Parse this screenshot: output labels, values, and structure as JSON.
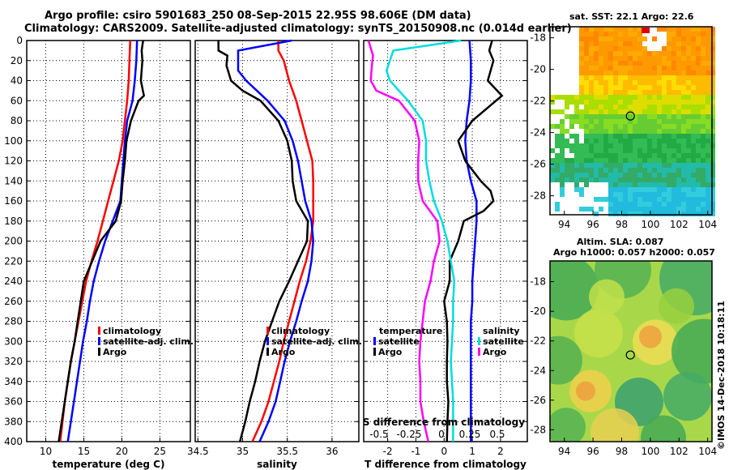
{
  "header": {
    "title_line1": "Argo profile: csiro 5901683_250 08-Sep-2015 22.95S 98.606E (DM data)",
    "title_line2": "Climatology: CARS2009. Satellite-adjusted climatology: synTS_20150908.nc (0.014d earlier)"
  },
  "maps": {
    "sst_title": "sat. SST: 22.1  Argo: 22.6",
    "sla_title1": "Altim. SLA: 0.087",
    "sla_title2": "Argo h1000: 0.057 h2000: 0.057",
    "lon_ticks": [
      "94",
      "96",
      "98",
      "100",
      "102",
      "104"
    ],
    "lat_ticks": [
      "-18",
      "-20",
      "-22",
      "-24",
      "-26",
      "-28"
    ],
    "argo_lon": 98.606,
    "argo_lat": -22.95
  },
  "footer": {
    "stamp": "©IMOS 14-Dec-2018 10:18:11"
  },
  "chart_data": [
    {
      "type": "line",
      "id": "temperature",
      "xlabel": "temperature (deg C)",
      "ylabel": "",
      "xlim": [
        7.5,
        29
      ],
      "ylim": [
        400,
        0
      ],
      "xticks": [
        10,
        15,
        20,
        25
      ],
      "yticks": [
        0,
        20,
        40,
        60,
        80,
        100,
        120,
        140,
        160,
        180,
        200,
        220,
        240,
        260,
        280,
        300,
        320,
        340,
        360,
        380,
        400
      ],
      "grid": true,
      "legend": [
        "climatology",
        "satellite-adj. clim.",
        "Argo"
      ],
      "legend_position": "lower-right",
      "series": [
        {
          "name": "climatology",
          "color": "#ff0000",
          "depth": [
            0,
            20,
            40,
            60,
            80,
            100,
            120,
            140,
            160,
            180,
            200,
            220,
            240,
            260,
            280,
            300,
            320,
            340,
            360,
            380,
            400
          ],
          "values": [
            21.1,
            21.0,
            20.9,
            20.7,
            20.4,
            20.1,
            19.6,
            18.9,
            18.2,
            17.5,
            16.8,
            16.0,
            15.3,
            14.8,
            14.3,
            13.8,
            13.3,
            12.9,
            12.5,
            12.2,
            11.9
          ]
        },
        {
          "name": "satellite-adj. clim.",
          "color": "#0000ff",
          "depth": [
            0,
            20,
            40,
            60,
            80,
            100,
            120,
            140,
            160,
            180,
            200,
            220,
            240,
            260,
            280,
            300,
            320,
            340,
            360,
            380,
            400
          ],
          "values": [
            22.0,
            21.9,
            21.7,
            21.4,
            20.7,
            20.4,
            20.2,
            20.0,
            19.8,
            18.8,
            17.8,
            17.0,
            16.3,
            15.8,
            15.4,
            14.9,
            14.5,
            14.1,
            13.7,
            13.3,
            12.9
          ]
        },
        {
          "name": "Argo",
          "color": "#000000",
          "depth": [
            0,
            10,
            20,
            40,
            55,
            60,
            80,
            100,
            120,
            140,
            160,
            180,
            200,
            220,
            240,
            260,
            280,
            300,
            320,
            340,
            360,
            380,
            400
          ],
          "values": [
            22.8,
            22.6,
            22.7,
            22.5,
            22.9,
            22.2,
            21.2,
            20.6,
            20.4,
            20.1,
            19.9,
            19.2,
            17.2,
            16.1,
            15.0,
            14.6,
            14.2,
            13.8,
            13.3,
            12.9,
            12.5,
            12.1,
            11.7
          ]
        }
      ]
    },
    {
      "type": "line",
      "id": "salinity",
      "xlabel": "salinity",
      "ylabel": "",
      "xlim": [
        34.47,
        36.3
      ],
      "ylim": [
        400,
        0
      ],
      "xticks": [
        34.5,
        35,
        35.5,
        36
      ],
      "xticklabels": [
        "34.5",
        "35",
        "35.5",
        "36"
      ],
      "grid": true,
      "legend": [
        "climatology",
        "satellite-adj. clim.",
        "Argo"
      ],
      "legend_position": "lower-right",
      "series": [
        {
          "name": "climatology",
          "color": "#ff0000",
          "depth": [
            0,
            10,
            20,
            40,
            60,
            80,
            100,
            120,
            140,
            160,
            180,
            200,
            220,
            240,
            260,
            280,
            300,
            320,
            340,
            360,
            380,
            400
          ],
          "values": [
            35.4,
            35.4,
            35.46,
            35.52,
            35.6,
            35.66,
            35.72,
            35.78,
            35.79,
            35.79,
            35.79,
            35.76,
            35.71,
            35.64,
            35.58,
            35.52,
            35.46,
            35.41,
            35.35,
            35.29,
            35.21,
            35.11
          ]
        },
        {
          "name": "satellite-adj. clim.",
          "color": "#0000ff",
          "depth": [
            0,
            10,
            30,
            40,
            60,
            80,
            100,
            120,
            140,
            160,
            180,
            200,
            220,
            240,
            260,
            280,
            300,
            320,
            340,
            360,
            380,
            400
          ],
          "values": [
            35.55,
            34.95,
            34.95,
            35.04,
            35.28,
            35.47,
            35.56,
            35.62,
            35.66,
            35.7,
            35.77,
            35.79,
            35.77,
            35.73,
            35.66,
            35.6,
            35.53,
            35.47,
            35.42,
            35.37,
            35.29,
            35.19
          ]
        },
        {
          "name": "Argo",
          "color": "#000000",
          "depth": [
            0,
            10,
            15,
            25,
            40,
            50,
            60,
            80,
            100,
            120,
            140,
            160,
            180,
            200,
            220,
            240,
            260,
            280,
            300,
            320,
            340,
            360,
            380,
            400
          ],
          "values": [
            34.73,
            34.73,
            34.83,
            34.82,
            34.87,
            35.0,
            35.2,
            35.4,
            35.5,
            35.55,
            35.56,
            35.6,
            35.73,
            35.72,
            35.62,
            35.52,
            35.41,
            35.33,
            35.25,
            35.19,
            35.14,
            35.08,
            35.03,
            34.97
          ]
        }
      ]
    },
    {
      "type": "line",
      "id": "difference",
      "xlabel": "T difference from climatology",
      "xlabel_top": "S difference from climatology",
      "xlim": [
        -2.85,
        2.95
      ],
      "ylim": [
        400,
        0
      ],
      "xticks": [
        -2,
        -1,
        0,
        1,
        2
      ],
      "xticklabels": [
        "-2",
        "-1",
        "0",
        "1",
        "2"
      ],
      "xticks_s": [
        "-0.5",
        "-0.25",
        "0",
        "0.25",
        "0.5"
      ],
      "grid": true,
      "legend_temperature_title": "temperature",
      "legend_salinity_title": "salinity",
      "legend_temperature": [
        "satellite",
        "Argo"
      ],
      "legend_salinity": [
        "satellite",
        "Argo"
      ],
      "series": [
        {
          "name": "temperature satellite",
          "color": "#0000ff",
          "axis": "T",
          "depth": [
            0,
            20,
            40,
            60,
            80,
            100,
            120,
            140,
            160,
            180,
            200,
            220,
            240,
            260,
            280,
            300,
            320,
            340,
            360,
            380,
            400
          ],
          "values": [
            0.9,
            0.95,
            0.95,
            0.9,
            0.8,
            0.75,
            0.8,
            0.95,
            1.15,
            1.15,
            1.1,
            1.05,
            1.0,
            1.0,
            0.95,
            0.95,
            0.95,
            0.95,
            0.95,
            0.95,
            0.95
          ]
        },
        {
          "name": "temperature Argo",
          "color": "#000000",
          "axis": "T",
          "depth": [
            0,
            10,
            20,
            40,
            55,
            80,
            100,
            120,
            140,
            150,
            160,
            170,
            180,
            200,
            220,
            240,
            260,
            280,
            300,
            320,
            340,
            360,
            380,
            400
          ],
          "values": [
            1.7,
            1.6,
            1.75,
            1.55,
            2.05,
            1.0,
            0.5,
            0.75,
            1.3,
            1.65,
            1.75,
            1.4,
            0.7,
            0.5,
            0.2,
            0.2,
            0.0,
            0.1,
            0.12,
            0.1,
            0.1,
            0.15,
            0.12,
            0.1
          ]
        },
        {
          "name": "salinity satellite",
          "color": "#00dddd",
          "axis": "S",
          "depth": [
            0,
            10,
            30,
            40,
            60,
            80,
            100,
            120,
            140,
            160,
            180,
            200,
            220,
            240,
            260,
            280,
            300,
            320,
            340,
            360,
            380,
            400
          ],
          "values": [
            0.15,
            -0.45,
            -0.51,
            -0.48,
            -0.32,
            -0.19,
            -0.16,
            -0.16,
            -0.13,
            -0.09,
            -0.02,
            0.03,
            0.06,
            0.09,
            0.08,
            0.08,
            0.07,
            0.06,
            0.07,
            0.08,
            0.08,
            0.08
          ]
        },
        {
          "name": "salinity Argo",
          "color": "#ff00ff",
          "axis": "S",
          "depth": [
            0,
            15,
            25,
            40,
            50,
            60,
            80,
            100,
            120,
            140,
            160,
            180,
            200,
            220,
            240,
            260,
            280,
            300,
            320,
            340,
            360,
            380,
            400
          ],
          "values": [
            -0.67,
            -0.63,
            -0.64,
            -0.65,
            -0.6,
            -0.4,
            -0.26,
            -0.22,
            -0.23,
            -0.23,
            -0.19,
            -0.06,
            -0.04,
            -0.09,
            -0.12,
            -0.17,
            -0.19,
            -0.21,
            -0.22,
            -0.21,
            -0.21,
            -0.18,
            -0.14
          ]
        }
      ]
    }
  ]
}
